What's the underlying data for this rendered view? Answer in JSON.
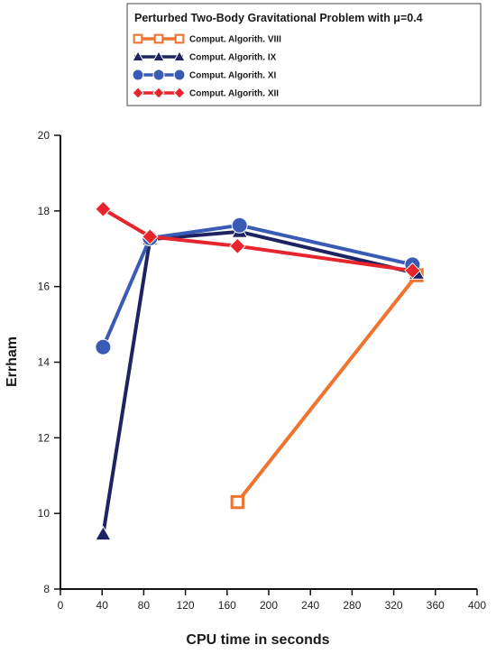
{
  "chart_data": {
    "type": "line",
    "title": "Perturbed Two-Body Gravitational Problem with μ=0.4",
    "xlabel": "CPU time in seconds",
    "ylabel": "Errham",
    "xlim": [
      0,
      400
    ],
    "ylim": [
      8,
      20
    ],
    "x_ticks": [
      "0",
      "40",
      "80",
      "120",
      "160",
      "200",
      "240",
      "280",
      "320",
      "360",
      "400"
    ],
    "y_ticks": [
      "8",
      "10",
      "12",
      "14",
      "16",
      "18",
      "20"
    ],
    "grid": false,
    "legend_position": "top-center",
    "series": [
      {
        "name": "Comput. Algorith. VIII",
        "color": "#ee7430",
        "marker": "square-open",
        "x": [
          170,
          342
        ],
        "y": [
          10.3,
          16.3
        ]
      },
      {
        "name": "Comput. Algorith. IX",
        "color": "#1f2362",
        "marker": "triangle",
        "x": [
          41,
          86,
          172,
          342
        ],
        "y": [
          9.45,
          17.25,
          17.45,
          16.35
        ]
      },
      {
        "name": "Comput. Algorith. XI",
        "color": "#3a5bb5",
        "marker": "circle",
        "x": [
          41,
          86,
          172,
          338
        ],
        "y": [
          14.4,
          17.28,
          17.62,
          16.58
        ]
      },
      {
        "name": "Comput. Algorith. XII",
        "color": "#e8252d",
        "marker": "diamond",
        "x": [
          41,
          86,
          170,
          338
        ],
        "y": [
          18.05,
          17.32,
          17.07,
          16.42
        ]
      }
    ]
  }
}
